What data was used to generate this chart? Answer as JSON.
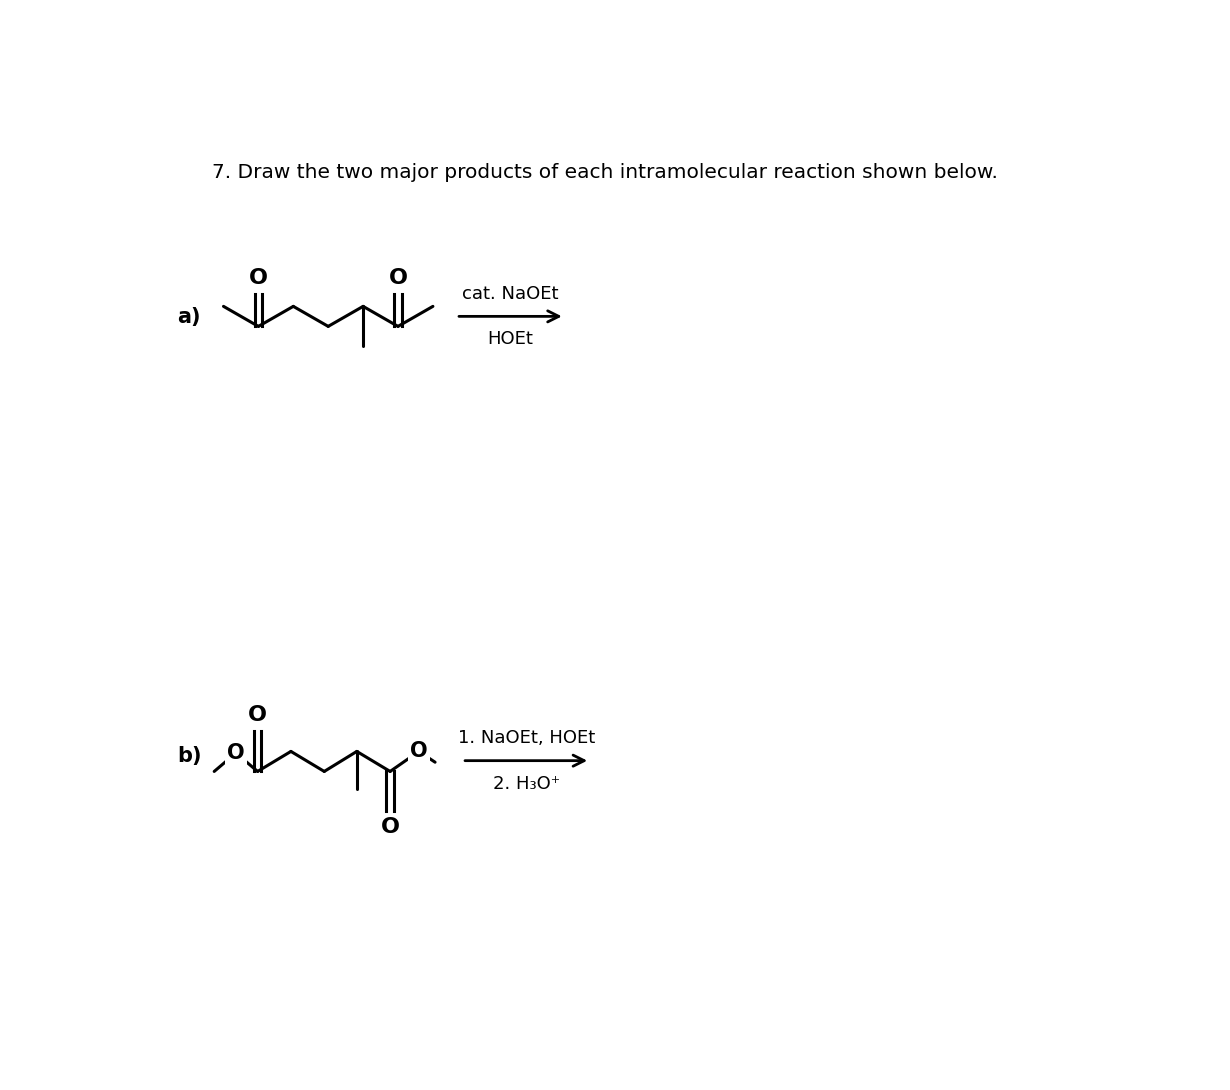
{
  "title": "7. Draw the two major products of each intramolecular reaction shown below.",
  "background_color": "#ffffff",
  "label_a": "a)",
  "label_b": "b)",
  "label_fontsize": 15,
  "reaction_a_line1": "cat. NaOEt",
  "reaction_a_line2": "HOEt",
  "reaction_b_line1": "1. NaOEt, HOEt",
  "reaction_b_line2": "2. H₃O⁺",
  "reagent_fontsize": 13,
  "title_fontsize": 14.5
}
